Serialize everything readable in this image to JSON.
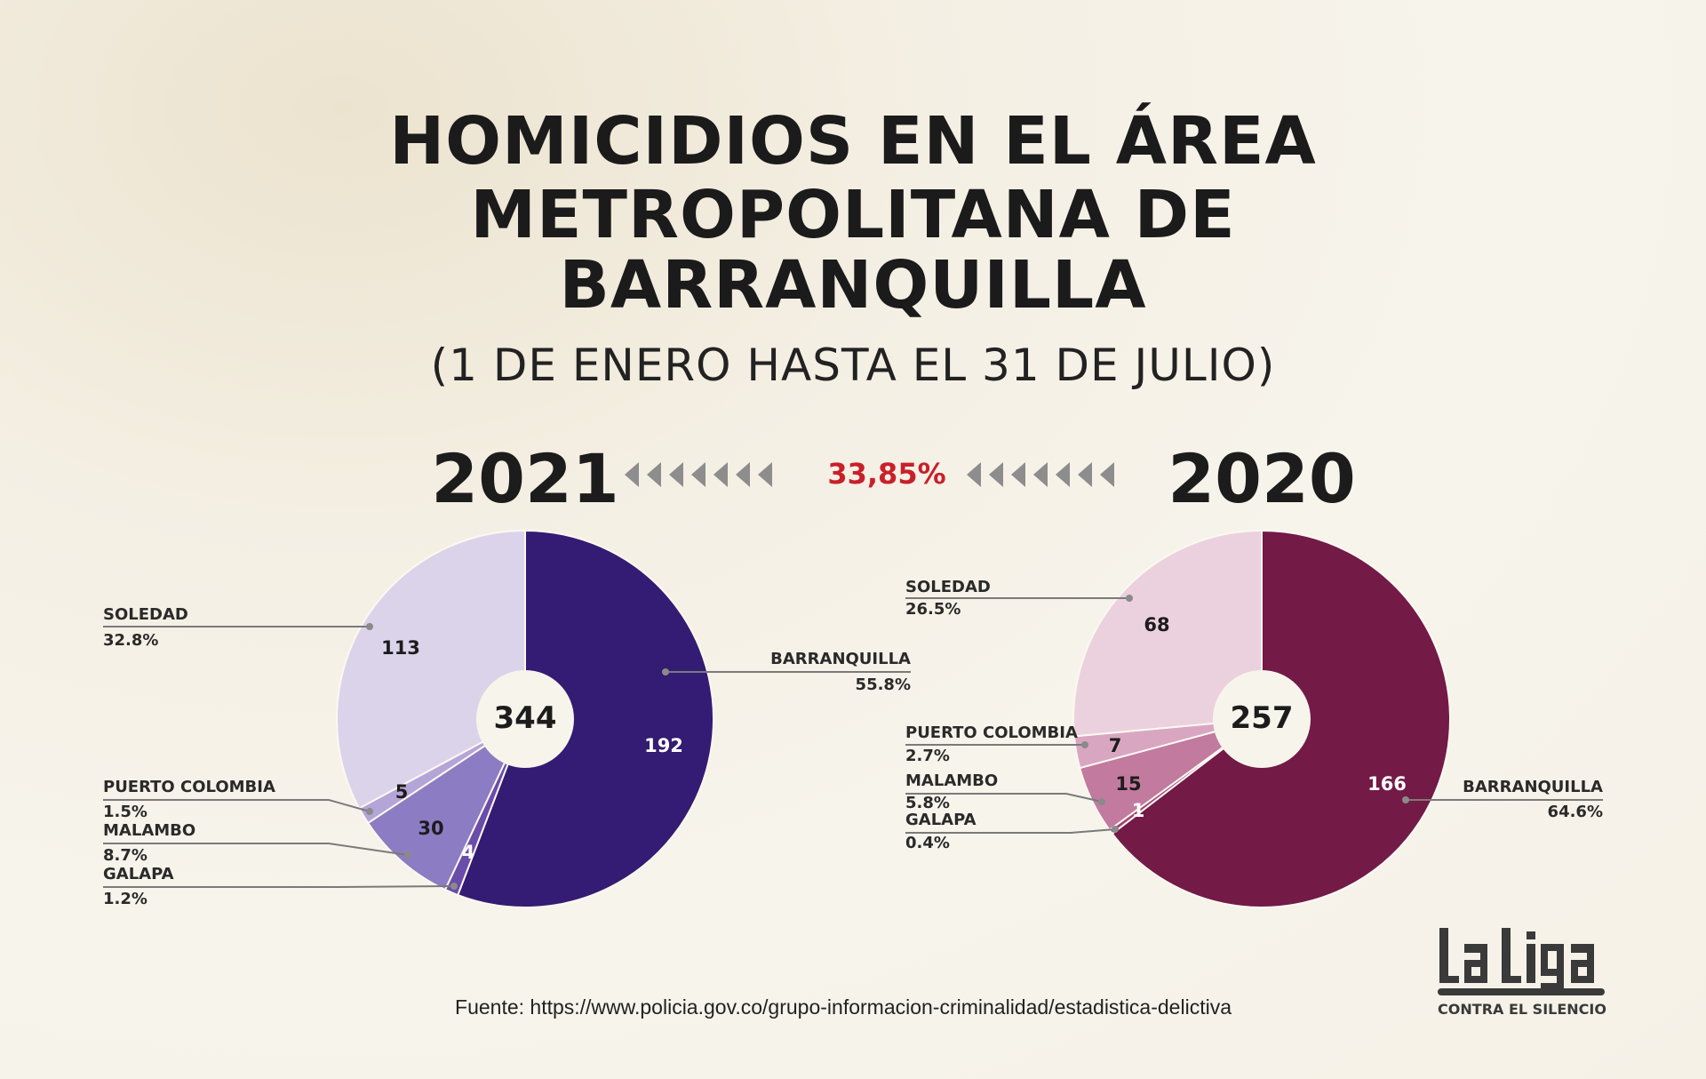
{
  "title": {
    "line1": "HOMICIDIOS EN EL ÁREA",
    "line2": "METROPOLITANA DE",
    "line3": "BARRANQUILLA",
    "subtitle": "(1 DE ENERO HASTA EL 31 DE JULIO)"
  },
  "comparison": {
    "year_left": "2021",
    "year_right": "2020",
    "change": "33,85%",
    "change_color": "#c8202a",
    "arrow_icon": "triangle-left-icon"
  },
  "chart_data": [
    {
      "type": "pie",
      "year": "2021",
      "total": "344",
      "categories": [
        "BARRANQUILLA",
        "GALAPA",
        "MALAMBO",
        "PUERTO COLOMBIA",
        "SOLEDAD"
      ],
      "values": [
        192,
        4,
        30,
        5,
        113
      ],
      "value_labels": [
        "192",
        "4",
        "30",
        "5",
        "113"
      ],
      "percent_labels": [
        "55.8%",
        "1.2%",
        "8.7%",
        "1.5%",
        "32.8%"
      ],
      "colors": [
        "#341b73",
        "#6a4caa",
        "#8c7cc3",
        "#b3a5d7",
        "#dbd3ea"
      ],
      "donut": true
    },
    {
      "type": "pie",
      "year": "2020",
      "total": "257",
      "categories": [
        "BARRANQUILLA",
        "GALAPA",
        "MALAMBO",
        "PUERTO COLOMBIA",
        "SOLEDAD"
      ],
      "values": [
        166,
        1,
        15,
        7,
        68
      ],
      "value_labels": [
        "166",
        "1",
        "15",
        "7",
        "68"
      ],
      "percent_labels": [
        "64.6%",
        "0.4%",
        "5.8%",
        "2.7%",
        "26.5%"
      ],
      "colors": [
        "#731a47",
        "#a3406f",
        "#c27a9f",
        "#d9a6c2",
        "#ebd1de"
      ],
      "donut": true
    }
  ],
  "source": "Fuente: https://www.policia.gov.co/grupo-informacion-criminalidad/estadistica-delictiva",
  "logo": {
    "name": "la liga",
    "tagline": "CONTRA EL SILENCIO"
  }
}
